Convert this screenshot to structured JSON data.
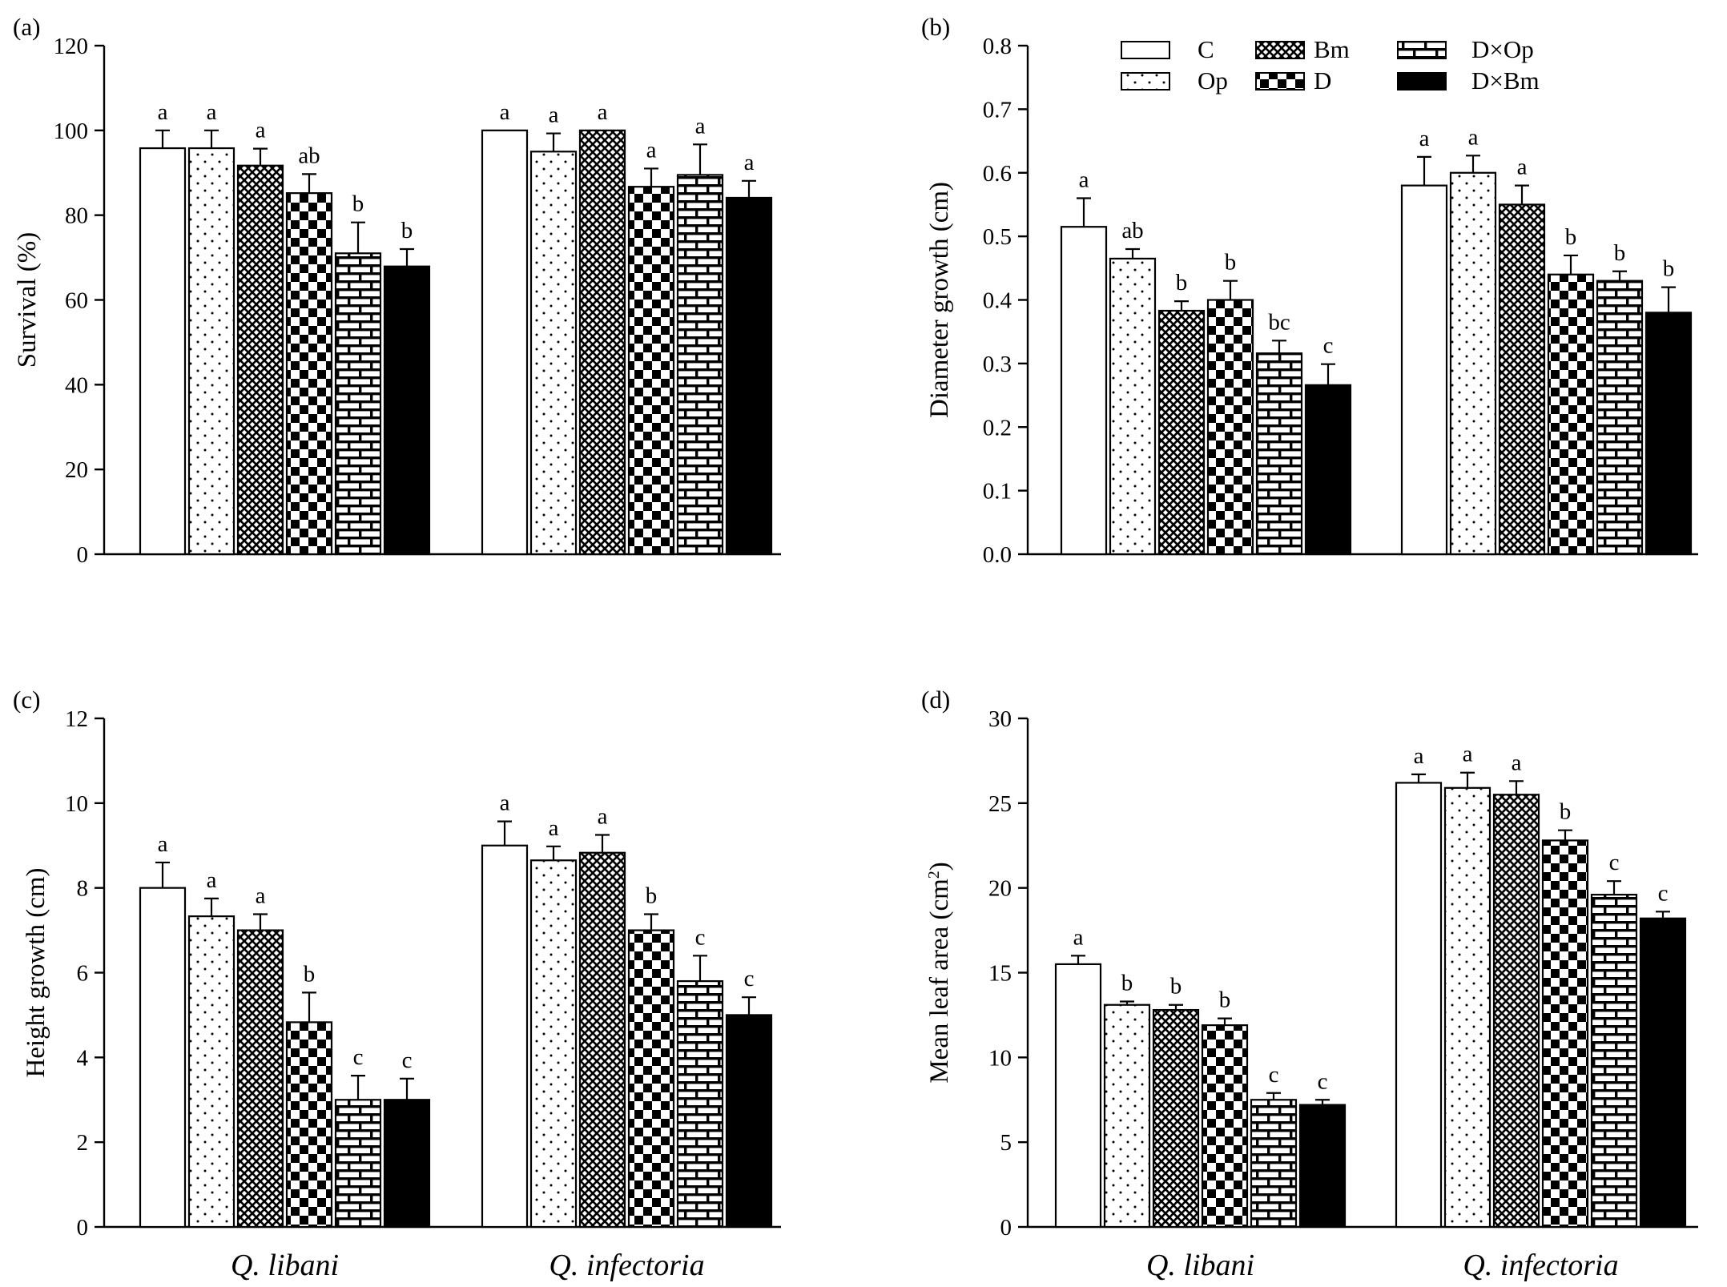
{
  "figure": {
    "treatments": [
      "C",
      "Op",
      "Bm",
      "D",
      "D×Op",
      "D×Bm"
    ],
    "groups": [
      "Q. libani",
      "Q. infectoria"
    ],
    "legend": {
      "placement": "top-right",
      "panel": 1
    }
  },
  "pattern_styles": {
    "C": "white",
    "Op": "dots",
    "Bm": "crosshatch",
    "D": "checker",
    "D×Op": "brick",
    "D×Bm": "black"
  },
  "chart_data": [
    {
      "type": "bar",
      "panel_label": "(a)",
      "ylabel": "Survival (%)",
      "ylim": [
        0,
        120
      ],
      "yticks": [
        "0",
        "20",
        "40",
        "60",
        "80",
        "100",
        "120"
      ],
      "ytick_values": [
        0,
        20,
        40,
        60,
        80,
        100,
        120
      ],
      "categories": [
        "Q. libani",
        "Q. infectoria"
      ],
      "show_group_labels": false,
      "series": [
        {
          "name": "C",
          "values": [
            95.8,
            100.0
          ],
          "errors": [
            4.2,
            0.0
          ],
          "sig": [
            "a",
            "a"
          ]
        },
        {
          "name": "Op",
          "values": [
            95.8,
            95.0
          ],
          "errors": [
            4.2,
            4.3
          ],
          "sig": [
            "a",
            "a"
          ]
        },
        {
          "name": "Bm",
          "values": [
            91.7,
            100.0
          ],
          "errors": [
            4.0,
            0.0
          ],
          "sig": [
            "a",
            "a"
          ]
        },
        {
          "name": "D",
          "values": [
            85.2,
            86.7
          ],
          "errors": [
            4.5,
            4.3
          ],
          "sig": [
            "ab",
            "a"
          ]
        },
        {
          "name": "D×Op",
          "values": [
            71.0,
            89.5
          ],
          "errors": [
            7.3,
            7.2
          ],
          "sig": [
            "b",
            "a"
          ]
        },
        {
          "name": "D×Bm",
          "values": [
            67.9,
            84.1
          ],
          "errors": [
            4.1,
            4.0
          ],
          "sig": [
            "b",
            "a"
          ]
        }
      ]
    },
    {
      "type": "bar",
      "panel_label": "(b)",
      "ylabel": "Diameter growth (cm)",
      "ylim": [
        0,
        0.8
      ],
      "yticks": [
        "0.0",
        "0.1",
        "0.2",
        "0.3",
        "0.4",
        "0.5",
        "0.6",
        "0.7",
        "0.8"
      ],
      "ytick_values": [
        0,
        0.1,
        0.2,
        0.3,
        0.4,
        0.5,
        0.6,
        0.7,
        0.8
      ],
      "categories": [
        "Q. libani",
        "Q. infectoria"
      ],
      "show_group_labels": false,
      "series": [
        {
          "name": "C",
          "values": [
            0.515,
            0.58
          ],
          "errors": [
            0.045,
            0.045
          ],
          "sig": [
            "a",
            "a"
          ]
        },
        {
          "name": "Op",
          "values": [
            0.465,
            0.6
          ],
          "errors": [
            0.015,
            0.027
          ],
          "sig": [
            "ab",
            "a"
          ]
        },
        {
          "name": "Bm",
          "values": [
            0.383,
            0.55
          ],
          "errors": [
            0.015,
            0.03
          ],
          "sig": [
            "b",
            "a"
          ]
        },
        {
          "name": "D",
          "values": [
            0.4,
            0.44
          ],
          "errors": [
            0.03,
            0.03
          ],
          "sig": [
            "b",
            "b"
          ]
        },
        {
          "name": "D×Op",
          "values": [
            0.316,
            0.43
          ],
          "errors": [
            0.02,
            0.015
          ],
          "sig": [
            "bc",
            "b"
          ]
        },
        {
          "name": "D×Bm",
          "values": [
            0.266,
            0.38
          ],
          "errors": [
            0.033,
            0.04
          ],
          "sig": [
            "c",
            "b"
          ]
        }
      ]
    },
    {
      "type": "bar",
      "panel_label": "(c)",
      "ylabel": "Height growth (cm)",
      "ylim": [
        0,
        12
      ],
      "yticks": [
        "0",
        "2",
        "4",
        "6",
        "8",
        "10",
        "12"
      ],
      "ytick_values": [
        0,
        2,
        4,
        6,
        8,
        10,
        12
      ],
      "categories": [
        "Q. libani",
        "Q. infectoria"
      ],
      "show_group_labels": true,
      "series": [
        {
          "name": "C",
          "values": [
            8.0,
            9.0
          ],
          "errors": [
            0.6,
            0.57
          ],
          "sig": [
            "a",
            "a"
          ]
        },
        {
          "name": "Op",
          "values": [
            7.33,
            8.65
          ],
          "errors": [
            0.42,
            0.33
          ],
          "sig": [
            "a",
            "a"
          ]
        },
        {
          "name": "Bm",
          "values": [
            7.0,
            8.83
          ],
          "errors": [
            0.38,
            0.42
          ],
          "sig": [
            "a",
            "a"
          ]
        },
        {
          "name": "D",
          "values": [
            4.83,
            7.0
          ],
          "errors": [
            0.7,
            0.38
          ],
          "sig": [
            "b",
            "b"
          ]
        },
        {
          "name": "D×Op",
          "values": [
            3.0,
            5.8
          ],
          "errors": [
            0.57,
            0.6
          ],
          "sig": [
            "c",
            "c"
          ]
        },
        {
          "name": "D×Bm",
          "values": [
            3.0,
            5.0
          ],
          "errors": [
            0.5,
            0.42
          ],
          "sig": [
            "c",
            "c"
          ]
        }
      ]
    },
    {
      "type": "bar",
      "panel_label": "(d)",
      "ylabel": "Mean leaf area (cm",
      "ylabel_sup": "2",
      "ylabel_end": ")",
      "ylim": [
        0,
        30
      ],
      "yticks": [
        "0",
        "5",
        "10",
        "15",
        "20",
        "25",
        "30"
      ],
      "ytick_values": [
        0,
        5,
        10,
        15,
        20,
        25,
        30
      ],
      "categories": [
        "Q. libani",
        "Q. infectoria"
      ],
      "show_group_labels": true,
      "series": [
        {
          "name": "C",
          "values": [
            15.5,
            26.2
          ],
          "errors": [
            0.5,
            0.5
          ],
          "sig": [
            "a",
            "a"
          ]
        },
        {
          "name": "Op",
          "values": [
            13.1,
            25.9
          ],
          "errors": [
            0.2,
            0.9
          ],
          "sig": [
            "b",
            "a"
          ]
        },
        {
          "name": "Bm",
          "values": [
            12.8,
            25.5
          ],
          "errors": [
            0.3,
            0.8
          ],
          "sig": [
            "b",
            "a"
          ]
        },
        {
          "name": "D",
          "values": [
            11.9,
            22.8
          ],
          "errors": [
            0.4,
            0.6
          ],
          "sig": [
            "b",
            "b"
          ]
        },
        {
          "name": "D×Op",
          "values": [
            7.5,
            19.6
          ],
          "errors": [
            0.4,
            0.8
          ],
          "sig": [
            "c",
            "c"
          ]
        },
        {
          "name": "D×Bm",
          "values": [
            7.2,
            18.2
          ],
          "errors": [
            0.3,
            0.4
          ],
          "sig": [
            "c",
            "c"
          ]
        }
      ]
    }
  ]
}
